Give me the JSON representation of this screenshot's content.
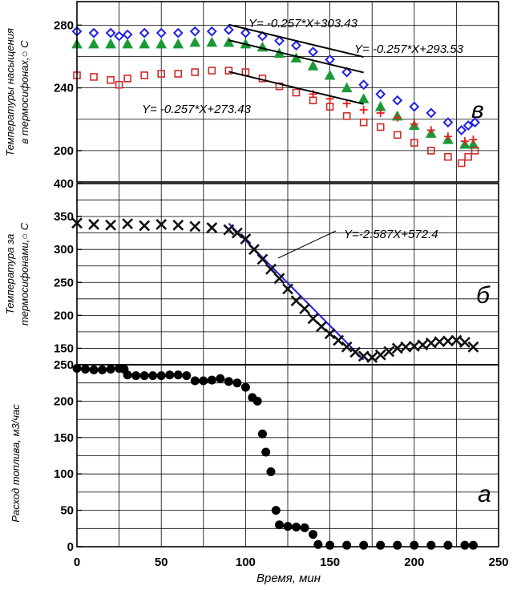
{
  "chart_data": [
    {
      "id": "v",
      "panel_label": "в",
      "type": "scatter",
      "ylabel_line1": "Температуры насыщения",
      "ylabel_line2": "в термосифонах,○ С",
      "ylim": [
        180,
        295
      ],
      "y_ticks": [
        "200",
        "240",
        "280"
      ],
      "series": [
        {
          "name": "series-blue",
          "color": "#1f1fe8",
          "marker": "diamond",
          "points": [
            [
              0,
              276
            ],
            [
              10,
              275
            ],
            [
              20,
              275
            ],
            [
              25,
              273
            ],
            [
              30,
              274
            ],
            [
              40,
              275
            ],
            [
              50,
              275
            ],
            [
              60,
              275
            ],
            [
              70,
              276
            ],
            [
              80,
              276
            ],
            [
              90,
              277
            ],
            [
              100,
              275
            ],
            [
              110,
              273
            ],
            [
              120,
              270
            ],
            [
              130,
              267
            ],
            [
              140,
              263
            ],
            [
              150,
              258
            ],
            [
              160,
              250
            ],
            [
              170,
              242
            ],
            [
              180,
              236
            ],
            [
              190,
              232
            ],
            [
              200,
              228
            ],
            [
              210,
              224
            ],
            [
              220,
              218
            ],
            [
              228,
              213
            ],
            [
              232,
              216
            ],
            [
              236,
              218
            ]
          ]
        },
        {
          "name": "series-green",
          "color": "#1a9a36",
          "marker": "triangle",
          "points": [
            [
              0,
              268
            ],
            [
              10,
              268
            ],
            [
              20,
              268
            ],
            [
              30,
              268
            ],
            [
              40,
              268
            ],
            [
              50,
              268
            ],
            [
              60,
              268
            ],
            [
              70,
              269
            ],
            [
              80,
              269
            ],
            [
              90,
              269
            ],
            [
              100,
              268
            ],
            [
              110,
              266
            ],
            [
              120,
              262
            ],
            [
              130,
              259
            ],
            [
              140,
              254
            ],
            [
              150,
              248
            ],
            [
              160,
              240
            ],
            [
              170,
              233
            ],
            [
              180,
              228
            ],
            [
              190,
              222
            ],
            [
              200,
              216
            ],
            [
              210,
              211
            ],
            [
              220,
              207
            ],
            [
              230,
              204
            ],
            [
              235,
              204
            ]
          ]
        },
        {
          "name": "series-red",
          "color": "#cf2a2a",
          "marker": "square",
          "points": [
            [
              0,
              248
            ],
            [
              10,
              247
            ],
            [
              20,
              245
            ],
            [
              25,
              242
            ],
            [
              30,
              246
            ],
            [
              40,
              248
            ],
            [
              50,
              249
            ],
            [
              60,
              249
            ],
            [
              70,
              250
            ],
            [
              80,
              251
            ],
            [
              90,
              251
            ],
            [
              100,
              250
            ],
            [
              110,
              246
            ],
            [
              120,
              241
            ],
            [
              130,
              237
            ],
            [
              140,
              232
            ],
            [
              150,
              228
            ],
            [
              160,
              222
            ],
            [
              170,
              218
            ],
            [
              180,
              215
            ],
            [
              190,
              210
            ],
            [
              200,
              205
            ],
            [
              210,
              200
            ],
            [
              220,
              196
            ],
            [
              228,
              192
            ],
            [
              232,
              196
            ],
            [
              236,
              200
            ]
          ]
        },
        {
          "name": "series-red-plus",
          "color": "#e62020",
          "marker": "plus",
          "points": [
            [
              140,
              236
            ],
            [
              150,
              233
            ],
            [
              160,
              230
            ],
            [
              170,
              226
            ],
            [
              180,
              224
            ],
            [
              190,
              221
            ],
            [
              200,
              217
            ],
            [
              210,
              213
            ],
            [
              220,
              209
            ],
            [
              230,
              206
            ],
            [
              235,
              207
            ]
          ]
        }
      ],
      "fit_lines": [
        {
          "label": "Y= -0.257*X+303.43",
          "x": [
            90,
            170
          ],
          "y": [
            280.3,
            259.7
          ]
        },
        {
          "label": "Y= -0.257*X+293.53",
          "x": [
            90,
            170
          ],
          "y": [
            270.4,
            249.8
          ]
        },
        {
          "label": "Y= -0.257*X+273.43",
          "x": [
            90,
            170
          ],
          "y": [
            250.3,
            229.7
          ]
        }
      ]
    },
    {
      "id": "b",
      "panel_label": "б",
      "type": "scatter",
      "ylabel_line1": "Температура за",
      "ylabel_line2": "термосифонами,○ С",
      "ylim": [
        125,
        400
      ],
      "y_ticks": [
        "150",
        "200",
        "250",
        "300",
        "350",
        "400"
      ],
      "series": [
        {
          "name": "series-outlet",
          "color": "#111111",
          "marker": "x",
          "points": [
            [
              0,
              340
            ],
            [
              10,
              338
            ],
            [
              20,
              337
            ],
            [
              30,
              339
            ],
            [
              40,
              336
            ],
            [
              50,
              338
            ],
            [
              60,
              337
            ],
            [
              70,
              335
            ],
            [
              80,
              333
            ],
            [
              90,
              330
            ],
            [
              95,
              325
            ],
            [
              100,
              316
            ],
            [
              105,
              300
            ],
            [
              110,
              285
            ],
            [
              115,
              270
            ],
            [
              120,
              256
            ],
            [
              125,
              240
            ],
            [
              130,
              222
            ],
            [
              135,
              210
            ],
            [
              140,
              195
            ],
            [
              145,
              183
            ],
            [
              150,
              172
            ],
            [
              155,
              162
            ],
            [
              160,
              152
            ],
            [
              165,
              144
            ],
            [
              170,
              138
            ],
            [
              175,
              136
            ],
            [
              180,
              140
            ],
            [
              185,
              145
            ],
            [
              190,
              150
            ],
            [
              195,
              152
            ],
            [
              200,
              153
            ],
            [
              205,
              155
            ],
            [
              210,
              158
            ],
            [
              215,
              160
            ],
            [
              220,
              161
            ],
            [
              225,
              162
            ],
            [
              230,
              159
            ],
            [
              235,
              152
            ]
          ]
        }
      ],
      "fit_lines": [
        {
          "label": "Y=-2.587X+572.4",
          "x": [
            90,
            170
          ],
          "y": [
            339.6,
            132.6
          ]
        }
      ]
    },
    {
      "id": "a",
      "panel_label": "а",
      "type": "scatter",
      "ylabel": "Расход топлива, м3/час",
      "xlabel": "Время, мин",
      "xlim": [
        0,
        250
      ],
      "ylim": [
        0,
        250
      ],
      "x_ticks": [
        "0",
        "50",
        "100",
        "150",
        "200",
        "250"
      ],
      "y_ticks": [
        "0",
        "50",
        "100",
        "150",
        "200",
        "250"
      ],
      "series": [
        {
          "name": "series-fuel",
          "color": "#000000",
          "marker": "circle",
          "points": [
            [
              0,
              245
            ],
            [
              5,
              244
            ],
            [
              10,
              243
            ],
            [
              15,
              243
            ],
            [
              20,
              244
            ],
            [
              25,
              245
            ],
            [
              28,
              244
            ],
            [
              30,
              236
            ],
            [
              35,
              235
            ],
            [
              40,
              235
            ],
            [
              45,
              235
            ],
            [
              50,
              235
            ],
            [
              55,
              236
            ],
            [
              60,
              236
            ],
            [
              65,
              235
            ],
            [
              70,
              228
            ],
            [
              75,
              228
            ],
            [
              80,
              229
            ],
            [
              85,
              231
            ],
            [
              90,
              227
            ],
            [
              95,
              225
            ],
            [
              100,
              219
            ],
            [
              104,
              205
            ],
            [
              107,
              200
            ],
            [
              110,
              155
            ],
            [
              112,
              130
            ],
            [
              115,
              103
            ],
            [
              118,
              50
            ],
            [
              120,
              30
            ],
            [
              125,
              28
            ],
            [
              130,
              27
            ],
            [
              135,
              26
            ],
            [
              140,
              17
            ],
            [
              143,
              3
            ],
            [
              150,
              2
            ],
            [
              160,
              2
            ],
            [
              170,
              2
            ],
            [
              180,
              2
            ],
            [
              190,
              2
            ],
            [
              200,
              2
            ],
            [
              210,
              2
            ],
            [
              220,
              2
            ],
            [
              230,
              2
            ],
            [
              235,
              2
            ]
          ]
        }
      ]
    }
  ]
}
